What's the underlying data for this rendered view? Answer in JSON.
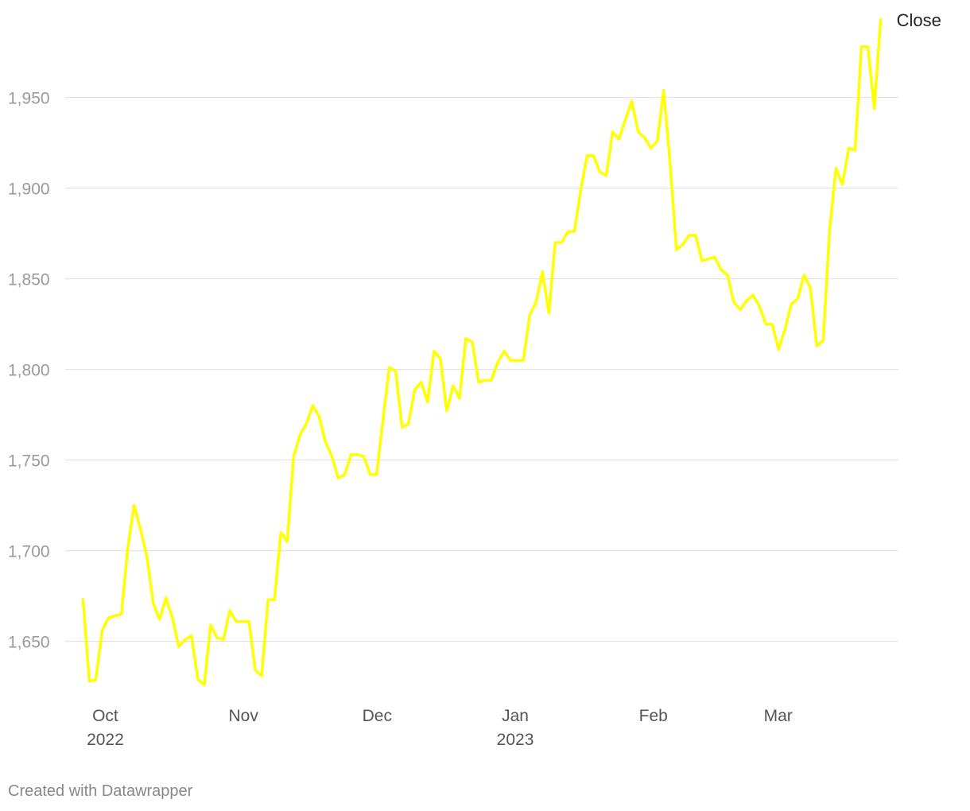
{
  "chart_data": {
    "type": "line",
    "title": "",
    "xlabel": "",
    "ylabel": "",
    "x_start": "2022-09-26",
    "x_end": "2023-03-24",
    "xlim": [
      "2022-09-22",
      "2023-03-28"
    ],
    "ylim": [
      1620,
      1995
    ],
    "y_ticks": [
      {
        "value": 1650,
        "label": "1,650"
      },
      {
        "value": 1700,
        "label": "1,700"
      },
      {
        "value": 1750,
        "label": "1,750"
      },
      {
        "value": 1800,
        "label": "1,800"
      },
      {
        "value": 1850,
        "label": "1,850"
      },
      {
        "value": 1900,
        "label": "1,900"
      },
      {
        "value": 1950,
        "label": "1,950"
      }
    ],
    "x_ticks": [
      {
        "date": "2022-10-01",
        "label": "Oct",
        "sublabel": "2022"
      },
      {
        "date": "2022-11-01",
        "label": "Nov",
        "sublabel": ""
      },
      {
        "date": "2022-12-01",
        "label": "Dec",
        "sublabel": ""
      },
      {
        "date": "2023-01-01",
        "label": "Jan",
        "sublabel": "2023"
      },
      {
        "date": "2023-02-01",
        "label": "Feb",
        "sublabel": ""
      },
      {
        "date": "2023-03-01",
        "label": "Mar",
        "sublabel": ""
      }
    ],
    "grid": true,
    "series": [
      {
        "name": "Close",
        "color": "#ffff00",
        "values": [
          1673,
          1628,
          1629,
          1656,
          1663,
          1664,
          1665,
          1701,
          1725,
          1712,
          1697,
          1671,
          1662,
          1674,
          1663,
          1647,
          1651,
          1653,
          1629,
          1626,
          1659,
          1652,
          1651,
          1667,
          1661,
          1661,
          1661,
          1634,
          1631,
          1673,
          1673,
          1710,
          1705,
          1752,
          1764,
          1770,
          1780,
          1774,
          1760,
          1752,
          1740,
          1742,
          1753,
          1753,
          1752,
          1742,
          1742,
          1772,
          1801,
          1799,
          1768,
          1770,
          1789,
          1793,
          1782,
          1810,
          1806,
          1777,
          1791,
          1784,
          1817,
          1815,
          1793,
          1794,
          1794,
          1804,
          1810,
          1805,
          1805,
          1805,
          1830,
          1837,
          1854,
          1831,
          1870,
          1870,
          1876,
          1876,
          1899,
          1918,
          1918,
          1909,
          1907,
          1931,
          1927,
          1938,
          1948,
          1931,
          1928,
          1922,
          1926,
          1954,
          1914,
          1866,
          1869,
          1874,
          1874,
          1860,
          1861,
          1862,
          1855,
          1852,
          1837,
          1833,
          1838,
          1841,
          1835,
          1825,
          1825,
          1811,
          1822,
          1836,
          1839,
          1852,
          1845,
          1813,
          1816,
          1877,
          1911,
          1902,
          1922,
          1921,
          1978,
          1978,
          1944,
          1993
        ]
      }
    ]
  },
  "footer": {
    "credit": "Created with Datawrapper"
  }
}
